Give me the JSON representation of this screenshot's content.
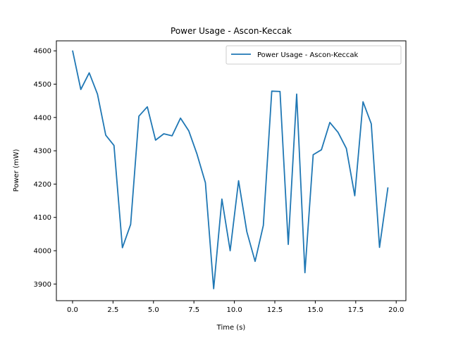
{
  "chart_data": {
    "type": "line",
    "title": "Power Usage - Ascon-Keccak",
    "xlabel": "Time (s)",
    "ylabel": "Power (mW)",
    "xlim": [
      -1.0,
      20.6
    ],
    "ylim": [
      3850,
      4630
    ],
    "xticks": [
      0.0,
      2.5,
      5.0,
      7.5,
      10.0,
      12.5,
      15.0,
      17.5,
      20.0
    ],
    "xtick_labels": [
      "0.0",
      "2.5",
      "5.0",
      "7.5",
      "10.0",
      "12.5",
      "15.0",
      "17.5",
      "20.0"
    ],
    "yticks": [
      3900,
      4000,
      4100,
      4200,
      4300,
      4400,
      4500,
      4600
    ],
    "ytick_labels": [
      "3900",
      "4000",
      "4100",
      "4200",
      "4300",
      "4400",
      "4500",
      "4600"
    ],
    "grid": false,
    "legend_position": "top-right",
    "series": [
      {
        "name": "Power Usage - Ascon-Keccak",
        "color": "#1f77b4",
        "x": [
          0.0,
          0.51,
          1.03,
          1.54,
          2.05,
          2.56,
          3.08,
          3.59,
          4.1,
          4.62,
          5.13,
          5.64,
          6.15,
          6.67,
          7.18,
          7.69,
          8.21,
          8.72,
          9.23,
          9.74,
          10.26,
          10.77,
          11.28,
          11.79,
          12.31,
          12.82,
          13.33,
          13.85,
          14.36,
          14.87,
          15.38,
          15.9,
          16.41,
          16.92,
          17.44,
          17.95,
          18.46,
          18.97,
          19.49
        ],
        "y": [
          4601,
          4484,
          4534,
          4470,
          4347,
          4316,
          4009,
          4079,
          4404,
          4432,
          4332,
          4351,
          4345,
          4398,
          4360,
          4290,
          4204,
          3886,
          4155,
          4000,
          4210,
          4057,
          3968,
          4076,
          4479,
          4478,
          4019,
          4470,
          3934,
          4288,
          4303,
          4385,
          4355,
          4307,
          4165,
          4447,
          4381,
          4010,
          4190
        ]
      }
    ]
  }
}
